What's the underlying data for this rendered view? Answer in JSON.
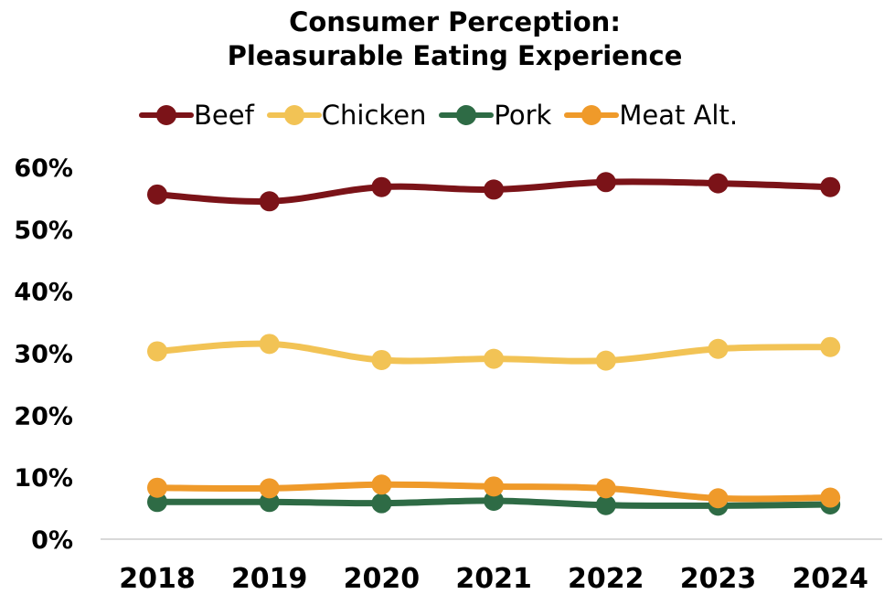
{
  "chart_data": {
    "type": "line",
    "title_line1": "Consumer Perception:",
    "title_line2": "Pleasurable Eating Experience",
    "xlabel": "",
    "ylabel": "",
    "categories": [
      "2018",
      "2019",
      "2020",
      "2021",
      "2022",
      "2023",
      "2024"
    ],
    "ylim": [
      0,
      60
    ],
    "yticks": [
      "0%",
      "10%",
      "20%",
      "30%",
      "40%",
      "50%",
      "60%"
    ],
    "grid": false,
    "legend_position": "top",
    "series": [
      {
        "name": "Beef",
        "color": "#7b1318",
        "values": [
          55.6,
          54.5,
          56.8,
          56.4,
          57.6,
          57.4,
          56.8
        ]
      },
      {
        "name": "Chicken",
        "color": "#f2c355",
        "values": [
          30.3,
          31.5,
          28.9,
          29.1,
          28.8,
          30.7,
          31.0
        ]
      },
      {
        "name": "Pork",
        "color": "#2e6b45",
        "values": [
          6.0,
          6.0,
          5.8,
          6.2,
          5.5,
          5.4,
          5.6
        ]
      },
      {
        "name": "Meat Alt.",
        "color": "#ef9a2a",
        "values": [
          8.3,
          8.2,
          8.8,
          8.5,
          8.2,
          6.6,
          6.7
        ]
      }
    ]
  }
}
